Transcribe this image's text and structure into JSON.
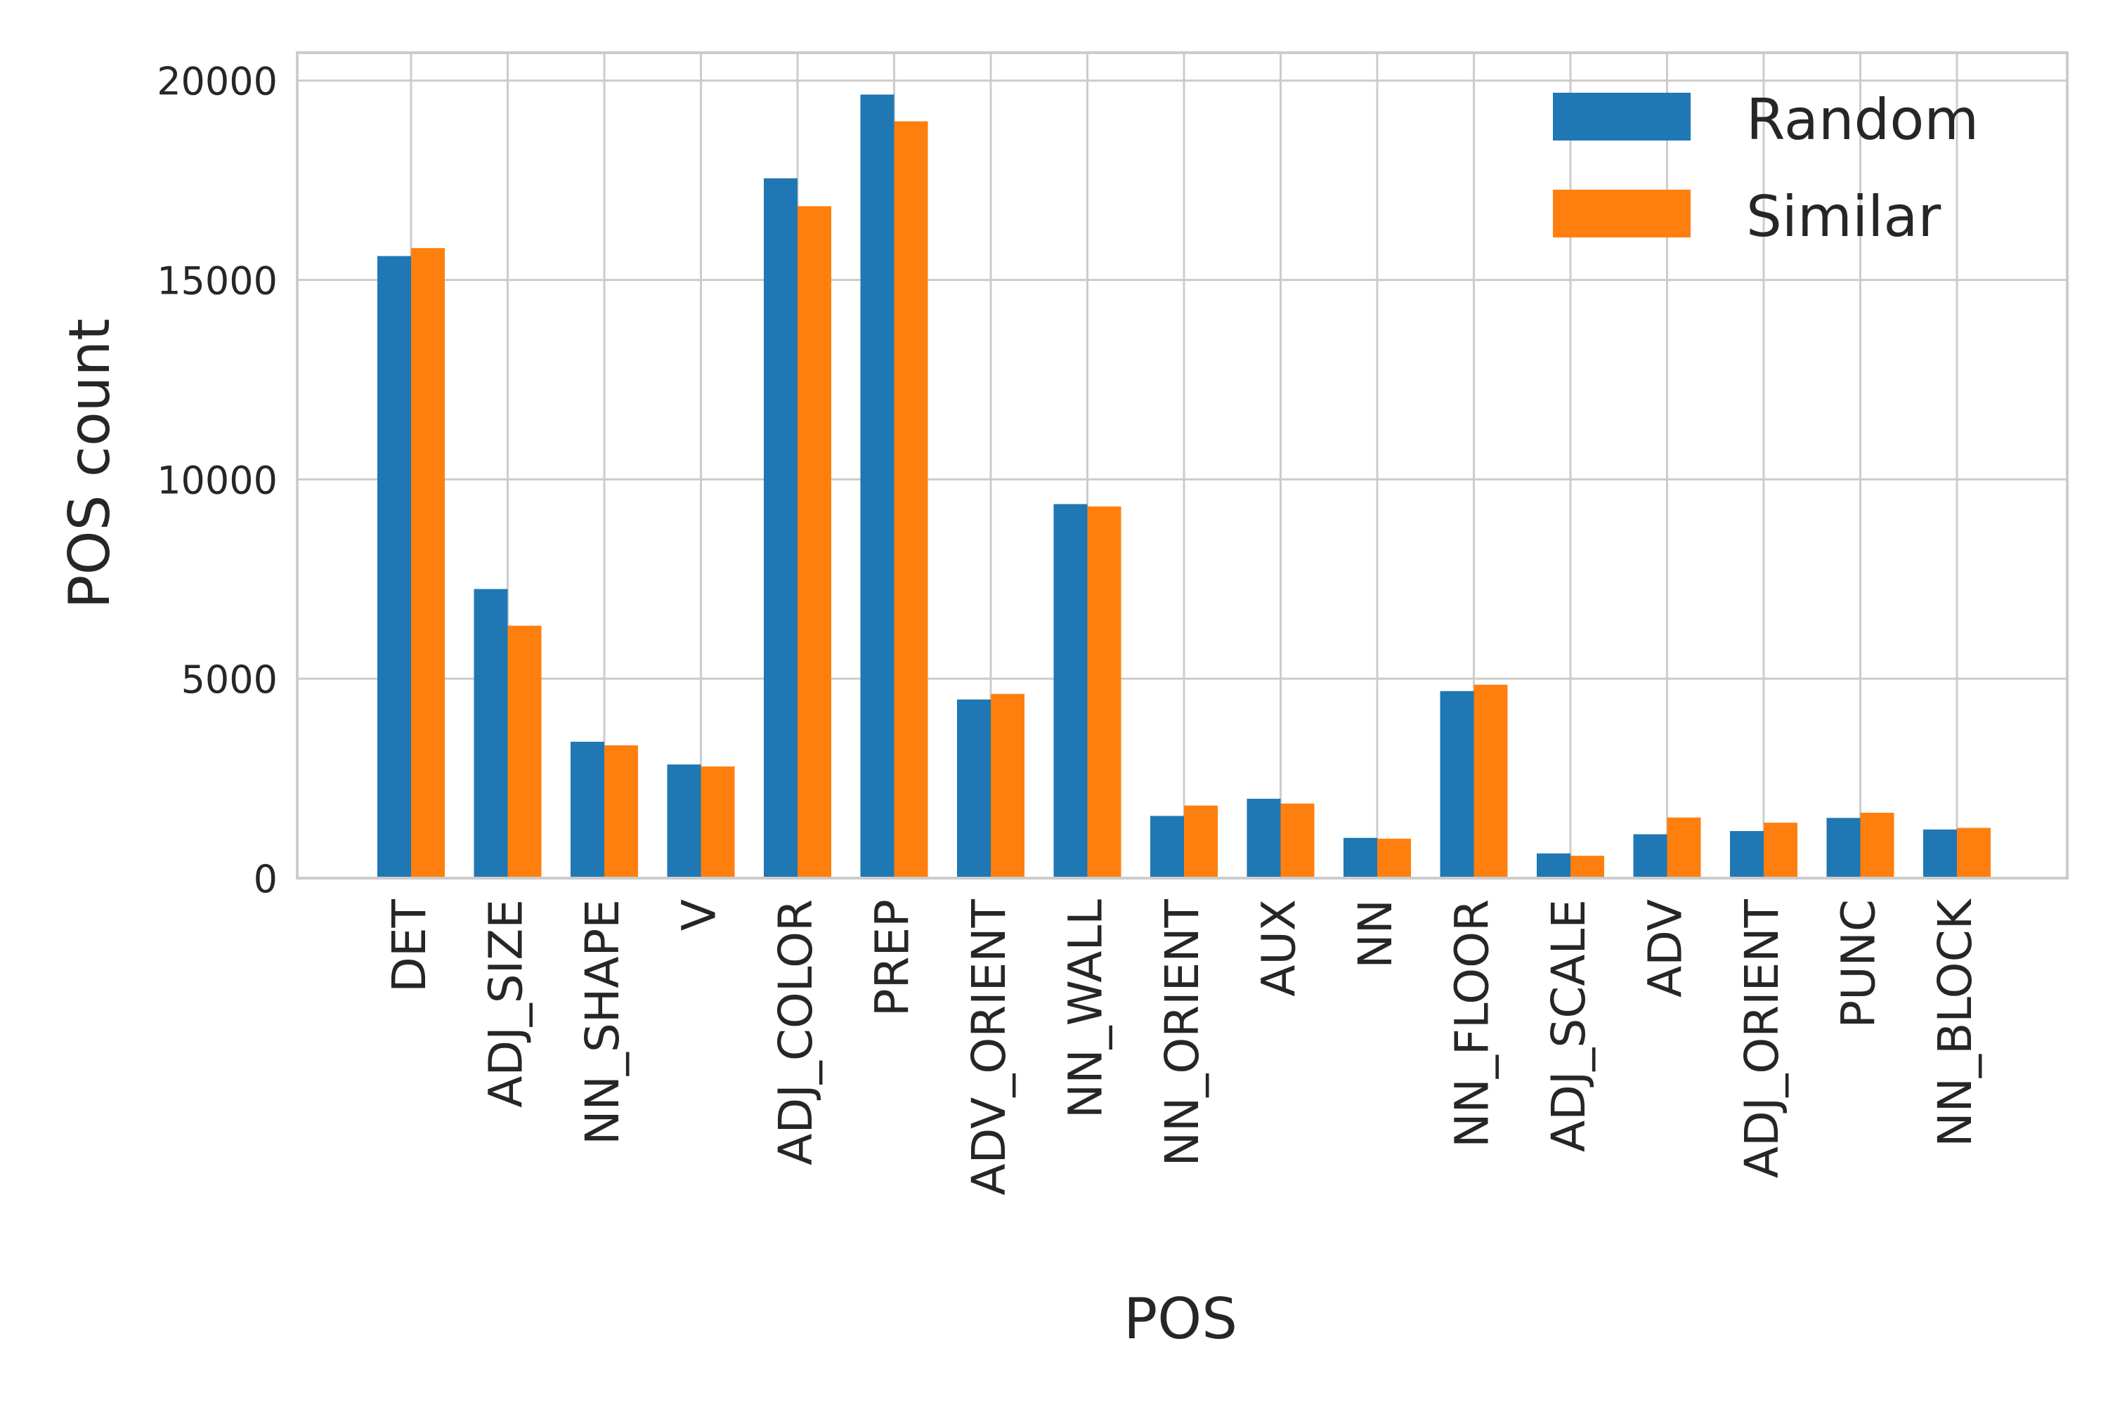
{
  "chart_data": {
    "type": "bar",
    "title": "",
    "xlabel": "POS",
    "ylabel": "POS count",
    "ylim": [
      0,
      20700
    ],
    "yticks": [
      0,
      5000,
      10000,
      15000,
      20000
    ],
    "grid": true,
    "legend_position": "top-right",
    "categories": [
      "DET",
      "ADJ_SIZE",
      "NN_SHAPE",
      "V",
      "ADJ_COLOR",
      "PREP",
      "ADV_ORIENT",
      "NN_WALL",
      "NN_ORIENT",
      "AUX",
      "NN",
      "NN_FLOOR",
      "ADJ_SCALE",
      "ADV",
      "ADJ_ORIENT",
      "PUNC",
      "NN_BLOCK"
    ],
    "series": [
      {
        "name": "Random",
        "color": "#1f77b4",
        "values": [
          15600,
          7250,
          3420,
          2850,
          17550,
          19650,
          4480,
          9380,
          1560,
          1990,
          1010,
          4690,
          620,
          1100,
          1180,
          1510,
          1220
        ]
      },
      {
        "name": "Similar",
        "color": "#ff7f0e",
        "values": [
          15800,
          6330,
          3330,
          2800,
          16850,
          18980,
          4620,
          9320,
          1820,
          1870,
          990,
          4850,
          560,
          1520,
          1390,
          1640,
          1260
        ]
      }
    ]
  }
}
